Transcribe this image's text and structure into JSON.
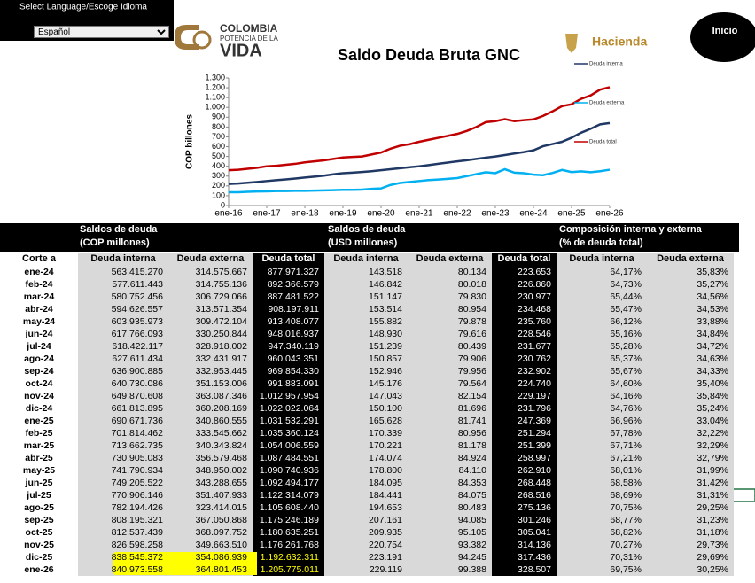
{
  "header": {
    "language_label": "Select Language/Escoge Idioma",
    "language_option": "Español",
    "logo_line1": "COLOMBIA",
    "logo_line2": "POTENCIA DE LA",
    "logo_line3": "VIDA",
    "ministry": "Hacienda",
    "home_button": "Inicio"
  },
  "chart_data": {
    "type": "line",
    "title": "Saldo Deuda Bruta GNC",
    "y_label": "COP billones",
    "categories": [
      "ene-16",
      null,
      null,
      null,
      "ene-17",
      null,
      null,
      null,
      "ene-18",
      null,
      null,
      null,
      "ene-19",
      null,
      null,
      null,
      "ene-20",
      null,
      null,
      null,
      "ene-21",
      null,
      null,
      null,
      "ene-22",
      null,
      null,
      null,
      "ene-23",
      null,
      null,
      null,
      "ene-24",
      null,
      null,
      null,
      "ene-25",
      null,
      null,
      null,
      "ene-26"
    ],
    "series": [
      {
        "name": "Deuda interna",
        "color": "#1f3864",
        "values": [
          220,
          225,
          232,
          240,
          250,
          258,
          266,
          275,
          285,
          295,
          305,
          318,
          330,
          335,
          342,
          350,
          360,
          370,
          380,
          390,
          400,
          412,
          425,
          438,
          450,
          462,
          475,
          488,
          500,
          515,
          530,
          545,
          563,
          604,
          627,
          650,
          691,
          742,
          782,
          827,
          841
        ]
      },
      {
        "name": "Deuda externa",
        "color": "#00b0f0",
        "values": [
          135,
          135,
          140,
          143,
          145,
          148,
          148,
          150,
          150,
          152,
          155,
          157,
          160,
          160,
          162,
          170,
          175,
          210,
          230,
          240,
          250,
          260,
          265,
          272,
          280,
          300,
          320,
          340,
          330,
          370,
          335,
          330,
          315,
          309,
          332,
          363,
          341,
          349,
          340,
          350,
          365
        ]
      },
      {
        "name": "Deuda total",
        "color": "#c00000",
        "values": [
          360,
          365,
          375,
          385,
          400,
          405,
          415,
          425,
          440,
          450,
          460,
          475,
          490,
          495,
          500,
          520,
          540,
          580,
          610,
          625,
          650,
          670,
          690,
          710,
          730,
          760,
          800,
          850,
          860,
          880,
          860,
          870,
          878,
          913,
          960,
          1013,
          1032,
          1087,
          1122,
          1181,
          1206
        ]
      }
    ],
    "ylim": [
      0,
      1300
    ],
    "yticks": [
      0,
      100,
      200,
      300,
      400,
      500,
      600,
      700,
      800,
      900,
      {
        "value": 1000,
        "label": "1.000"
      },
      {
        "value": 1100,
        "label": "1.100"
      },
      {
        "value": 1200,
        "label": "1.200"
      },
      {
        "value": 1300,
        "label": "1.300"
      }
    ]
  },
  "table": {
    "groups": [
      [
        "Saldos de deuda",
        "(COP millones)"
      ],
      [
        "Saldos de deuda",
        "(USD millones)"
      ],
      [
        "Composición interna y externa",
        "(% de deuda total)"
      ]
    ],
    "columns": [
      "Corte a",
      "Deuda interna",
      "Deuda externa",
      "Deuda total",
      "Deuda interna",
      "Deuda externa",
      "Deuda total",
      "Deuda interna",
      "Deuda externa"
    ],
    "rows": [
      [
        "ene-24",
        "563.415.270",
        "314.575.667",
        "877.971.327",
        "143.518",
        "80.134",
        "223.653",
        "64,17%",
        "35,83%"
      ],
      [
        "feb-24",
        "577.611.443",
        "314.755.136",
        "892.366.579",
        "146.842",
        "80.018",
        "226.860",
        "64,73%",
        "35,27%"
      ],
      [
        "mar-24",
        "580.752.456",
        "306.729.066",
        "887.481.522",
        "151.147",
        "79.830",
        "230.977",
        "65,44%",
        "34,56%"
      ],
      [
        "abr-24",
        "594.626.557",
        "313.571.354",
        "908.197.911",
        "153.514",
        "80.954",
        "234.468",
        "65,47%",
        "34,53%"
      ],
      [
        "may-24",
        "603.935.973",
        "309.472.104",
        "913.408.077",
        "155.882",
        "79.878",
        "235.760",
        "66,12%",
        "33,88%"
      ],
      [
        "jun-24",
        "617.766.093",
        "330.250.844",
        "948.016.937",
        "148.930",
        "79.616",
        "228.546",
        "65,16%",
        "34,84%"
      ],
      [
        "jul-24",
        "618.422.117",
        "328.918.002",
        "947.340.119",
        "151.239",
        "80.439",
        "231.677",
        "65,28%",
        "34,72%"
      ],
      [
        "ago-24",
        "627.611.434",
        "332.431.917",
        "960.043.351",
        "150.857",
        "79.906",
        "230.762",
        "65,37%",
        "34,63%"
      ],
      [
        "sep-24",
        "636.900.885",
        "332.953.445",
        "969.854.330",
        "152.946",
        "79.956",
        "232.902",
        "65,67%",
        "34,33%"
      ],
      [
        "oct-24",
        "640.730.086",
        "351.153.006",
        "991.883.091",
        "145.176",
        "79.564",
        "224.740",
        "64,60%",
        "35,40%"
      ],
      [
        "nov-24",
        "649.870.608",
        "363.087.346",
        "1.012.957.954",
        "147.043",
        "82.154",
        "229.197",
        "64,16%",
        "35,84%"
      ],
      [
        "dic-24",
        "661.813.895",
        "360.208.169",
        "1.022.022.064",
        "150.100",
        "81.696",
        "231.796",
        "64,76%",
        "35,24%"
      ],
      [
        "ene-25",
        "690.671.736",
        "340.860.555",
        "1.031.532.291",
        "165.628",
        "81.741",
        "247.369",
        "66,96%",
        "33,04%"
      ],
      [
        "feb-25",
        "701.814.462",
        "333.545.662",
        "1.035.360.124",
        "170.339",
        "80.956",
        "251.294",
        "67,78%",
        "32,22%"
      ],
      [
        "mar-25",
        "713.662.735",
        "340.343.824",
        "1.054.006.559",
        "170.221",
        "81.178",
        "251.399",
        "67,71%",
        "32,29%"
      ],
      [
        "abr-25",
        "730.905.083",
        "356.579.468",
        "1.087.484.551",
        "174.074",
        "84.924",
        "258.997",
        "67,21%",
        "32,79%"
      ],
      [
        "may-25",
        "741.790.934",
        "348.950.002",
        "1.090.740.936",
        "178.800",
        "84.110",
        "262.910",
        "68,01%",
        "31,99%"
      ],
      [
        "jun-25",
        "749.205.522",
        "343.288.655",
        "1.092.494.177",
        "184.095",
        "84.353",
        "268.448",
        "68,58%",
        "31,42%"
      ],
      [
        "jul-25",
        "770.906.146",
        "351.407.933",
        "1.122.314.079",
        "184.441",
        "84.075",
        "268.516",
        "68,69%",
        "31,31%"
      ],
      [
        "ago-25",
        "782.194.426",
        "323.414.015",
        "1.105.608.440",
        "194.653",
        "80.483",
        "275.136",
        "70,75%",
        "29,25%"
      ],
      [
        "sep-25",
        "808.195.321",
        "367.050.868",
        "1.175.246.189",
        "207.161",
        "94.085",
        "301.246",
        "68,77%",
        "31,23%"
      ],
      [
        "oct-25",
        "812.537.439",
        "368.097.752",
        "1.180.635.251",
        "209.935",
        "95.105",
        "305.041",
        "68,82%",
        "31,18%"
      ],
      [
        "nov-25",
        "826.598.258",
        "349.663.510",
        "1.176.261.768",
        "220.754",
        "93.382",
        "314.136",
        "70,27%",
        "29,73%"
      ],
      [
        "dic-25",
        "838.545.372",
        "354.086.939",
        "1.192.632.311",
        "223.191",
        "94.245",
        "317.436",
        "70,31%",
        "29,69%"
      ],
      [
        "ene-26",
        "840.973.558",
        "364.801.453",
        "1.205.775.011",
        "229.119",
        "99.388",
        "328.507",
        "69,75%",
        "30,25%"
      ]
    ]
  }
}
